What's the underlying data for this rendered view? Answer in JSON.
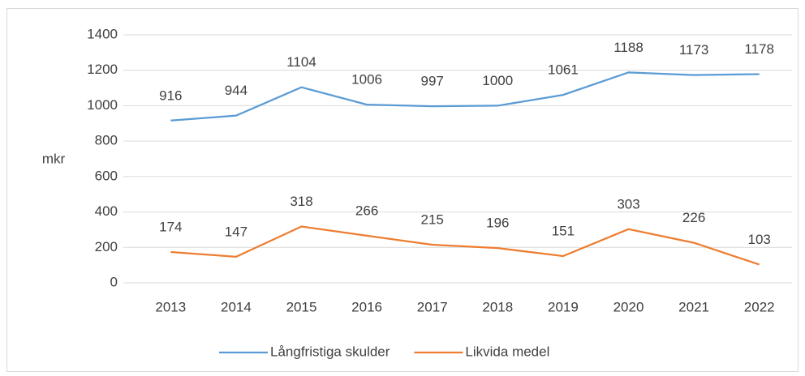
{
  "chart_data": {
    "type": "line",
    "y_label": "mkr",
    "categories": [
      "2013",
      "2014",
      "2015",
      "2016",
      "2017",
      "2018",
      "2019",
      "2020",
      "2021",
      "2022"
    ],
    "series": [
      {
        "name": "Långfristiga skulder",
        "color": "#5b9bd5",
        "values": [
          916,
          944,
          1104,
          1006,
          997,
          1000,
          1061,
          1188,
          1173,
          1178
        ]
      },
      {
        "name": "Likvida medel",
        "color": "#ed7d31",
        "values": [
          174,
          147,
          318,
          266,
          215,
          196,
          151,
          303,
          226,
          103
        ]
      }
    ],
    "ylim": [
      0,
      1400
    ],
    "yticks": [
      0,
      200,
      400,
      600,
      800,
      1000,
      1200,
      1400
    ],
    "grid": true,
    "legend": "bottom"
  }
}
